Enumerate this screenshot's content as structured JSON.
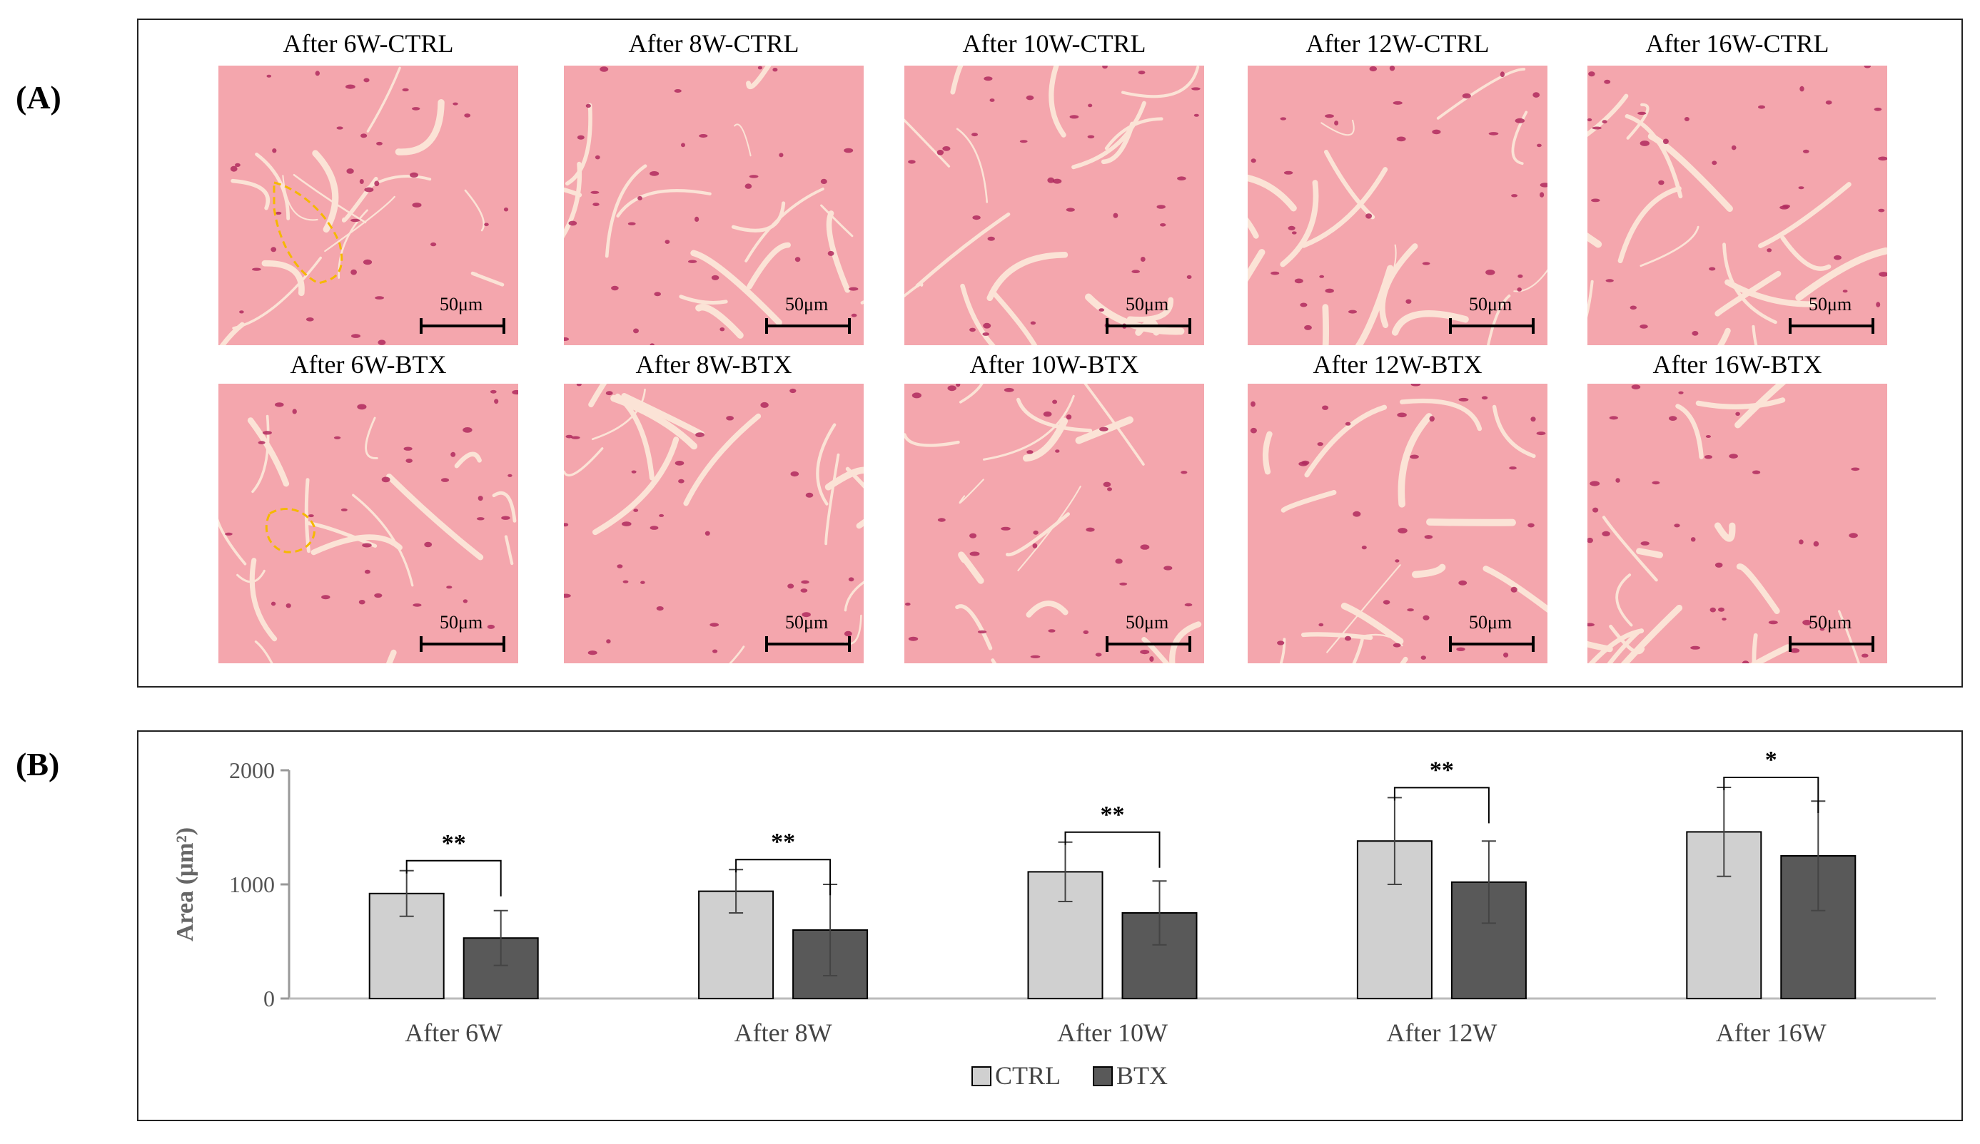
{
  "panel_a": {
    "label": "(A)",
    "scale_bar": "50μm",
    "ctrl_captions": [
      "After  6W-CTRL",
      "After  8W-CTRL",
      "After  10W-CTRL",
      "After  12W-CTRL",
      "After  16W-CTRL"
    ],
    "btx_captions": [
      "After  6W-BTX",
      "After  8W-BTX",
      "After  10W-BTX",
      "After  12W-BTX",
      "After  16W-BTX"
    ],
    "colors": {
      "tissue": "#f4a6ad",
      "membrane": "#fbe3d6",
      "nucleus": "#b02a5e",
      "outline": "#f5b800"
    }
  },
  "panel_b": {
    "label": "(B)"
  },
  "chart_data": {
    "type": "bar",
    "title": "",
    "xlabel": "",
    "ylabel": "Area (μm²)",
    "ylim": [
      0,
      2000
    ],
    "yticks": [
      0,
      1000,
      2000
    ],
    "categories": [
      "After 6W",
      "After 8W",
      "After 10W",
      "After 12W",
      "After 16W"
    ],
    "series": [
      {
        "name": "CTRL",
        "color": "#d0d0d0",
        "values": [
          920,
          940,
          1110,
          1380,
          1460
        ],
        "errors": [
          200,
          190,
          260,
          380,
          390
        ]
      },
      {
        "name": "BTX",
        "color": "#595959",
        "values": [
          530,
          600,
          750,
          1020,
          1250
        ],
        "errors": [
          240,
          400,
          280,
          360,
          480
        ]
      }
    ],
    "significance": [
      "**",
      "**",
      "**",
      "**",
      "*"
    ],
    "legend_position": "bottom-center",
    "grid": false
  }
}
